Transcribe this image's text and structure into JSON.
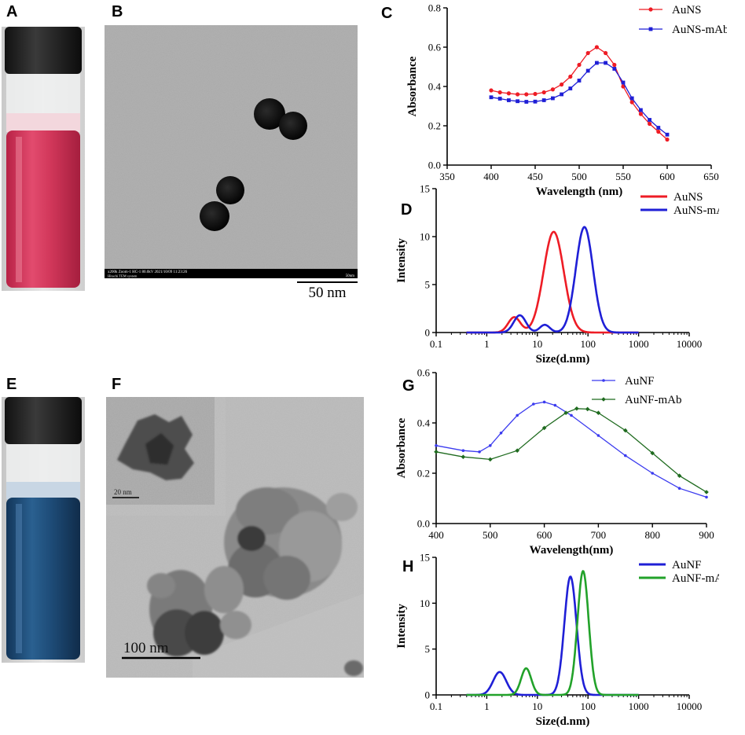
{
  "panels": {
    "A": {
      "letter": "A"
    },
    "B": {
      "letter": "B",
      "scalebar": "50 nm",
      "footer": "x200k Zoom-1 HC-1 80.0kV 2021/10/09 11:23:26",
      "footer2": "Hitachi TEM system",
      "footer_right": "50nm"
    },
    "C": {
      "letter": "C"
    },
    "D": {
      "letter": "D"
    },
    "E": {
      "letter": "E"
    },
    "F": {
      "letter": "F",
      "scalebar": "100 nm",
      "inset_scalebar": "20 nm"
    },
    "G": {
      "letter": "G"
    },
    "H": {
      "letter": "H"
    }
  },
  "colors": {
    "red": "#ee1c25",
    "blue": "#1f1fd6",
    "blue_light": "#3b3bef",
    "green": "#1f6b1f",
    "green_bright": "#22a22a",
    "red_liquid": "#d1375a",
    "blue_liquid": "#1e4c78"
  },
  "chart_data": [
    {
      "id": "C",
      "type": "line",
      "xlabel": "Wavelength (nm)",
      "ylabel": "Absorbance",
      "xlim": [
        350,
        650
      ],
      "ylim": [
        0.0,
        0.8
      ],
      "xticks": [
        "350",
        "400",
        "450",
        "500",
        "550",
        "600",
        "650"
      ],
      "yticks": [
        "0.0",
        "0.2",
        "0.4",
        "0.6",
        "0.8"
      ],
      "x": [
        400,
        410,
        420,
        430,
        440,
        450,
        460,
        470,
        480,
        490,
        500,
        510,
        520,
        530,
        540,
        550,
        560,
        570,
        580,
        590,
        600
      ],
      "series": [
        {
          "name": "AuNS",
          "values": [
            0.38,
            0.37,
            0.365,
            0.36,
            0.36,
            0.362,
            0.37,
            0.385,
            0.41,
            0.45,
            0.51,
            0.57,
            0.6,
            0.57,
            0.51,
            0.4,
            0.32,
            0.26,
            0.21,
            0.17,
            0.13
          ]
        },
        {
          "name": "AuNS-mAb",
          "values": [
            0.345,
            0.338,
            0.33,
            0.325,
            0.322,
            0.323,
            0.33,
            0.34,
            0.36,
            0.39,
            0.43,
            0.48,
            0.52,
            0.52,
            0.49,
            0.42,
            0.34,
            0.28,
            0.23,
            0.19,
            0.155
          ]
        }
      ],
      "legend": "top-right"
    },
    {
      "id": "D",
      "type": "line",
      "xlabel": "Size(d.nm)",
      "ylabel": "Intensity",
      "xscale": "log",
      "xlim": [
        0.1,
        10000
      ],
      "ylim": [
        0,
        15
      ],
      "xticks": [
        "0.1",
        "1",
        "10",
        "100",
        "1000",
        "10000"
      ],
      "yticks": [
        "0",
        "5",
        "10",
        "15"
      ],
      "series": [
        {
          "name": "AuNS",
          "peaks": [
            {
              "x": 3.5,
              "h": 1.6,
              "w": 0.12
            },
            {
              "x": 21,
              "h": 10.5,
              "w": 0.2
            }
          ]
        },
        {
          "name": "AuNS-mAb",
          "peaks": [
            {
              "x": 4.5,
              "h": 1.8,
              "w": 0.12
            },
            {
              "x": 14,
              "h": 0.8,
              "w": 0.1
            },
            {
              "x": 85,
              "h": 11.0,
              "w": 0.17
            }
          ]
        }
      ],
      "legend": "top-right"
    },
    {
      "id": "G",
      "type": "line",
      "xlabel": "Wavelength(nm)",
      "ylabel": "Absorbance",
      "xlim": [
        400,
        900
      ],
      "ylim": [
        0.0,
        0.6
      ],
      "xticks": [
        "400",
        "500",
        "600",
        "700",
        "800",
        "900"
      ],
      "yticks": [
        "0.0",
        "0.2",
        "0.4",
        "0.6"
      ],
      "series": [
        {
          "name": "AuNF",
          "x": [
            400,
            450,
            480,
            500,
            520,
            550,
            580,
            600,
            620,
            650,
            700,
            750,
            800,
            850,
            900
          ],
          "values": [
            0.31,
            0.29,
            0.285,
            0.31,
            0.36,
            0.43,
            0.475,
            0.483,
            0.47,
            0.43,
            0.35,
            0.27,
            0.2,
            0.14,
            0.105
          ]
        },
        {
          "name": "AuNF-mAb",
          "x": [
            400,
            450,
            500,
            550,
            600,
            640,
            660,
            680,
            700,
            750,
            800,
            850,
            900
          ],
          "values": [
            0.285,
            0.265,
            0.255,
            0.29,
            0.38,
            0.44,
            0.457,
            0.455,
            0.44,
            0.37,
            0.28,
            0.19,
            0.125
          ]
        }
      ],
      "legend": "top-right"
    },
    {
      "id": "H",
      "type": "line",
      "xlabel": "Size(d.nm)",
      "ylabel": "Intensity",
      "xscale": "log",
      "xlim": [
        0.1,
        10000
      ],
      "ylim": [
        0,
        15
      ],
      "xticks": [
        "0.1",
        "1",
        "10",
        "100",
        "1000",
        "10000"
      ],
      "yticks": [
        "0",
        "5",
        "10",
        "15"
      ],
      "series": [
        {
          "name": "AuNF",
          "peaks": [
            {
              "x": 1.8,
              "h": 2.5,
              "w": 0.13
            },
            {
              "x": 45,
              "h": 12.9,
              "w": 0.12
            }
          ]
        },
        {
          "name": "AuNF-mAb",
          "peaks": [
            {
              "x": 6,
              "h": 2.9,
              "w": 0.1
            },
            {
              "x": 80,
              "h": 13.5,
              "w": 0.11
            }
          ]
        }
      ],
      "legend": "top-right"
    }
  ]
}
